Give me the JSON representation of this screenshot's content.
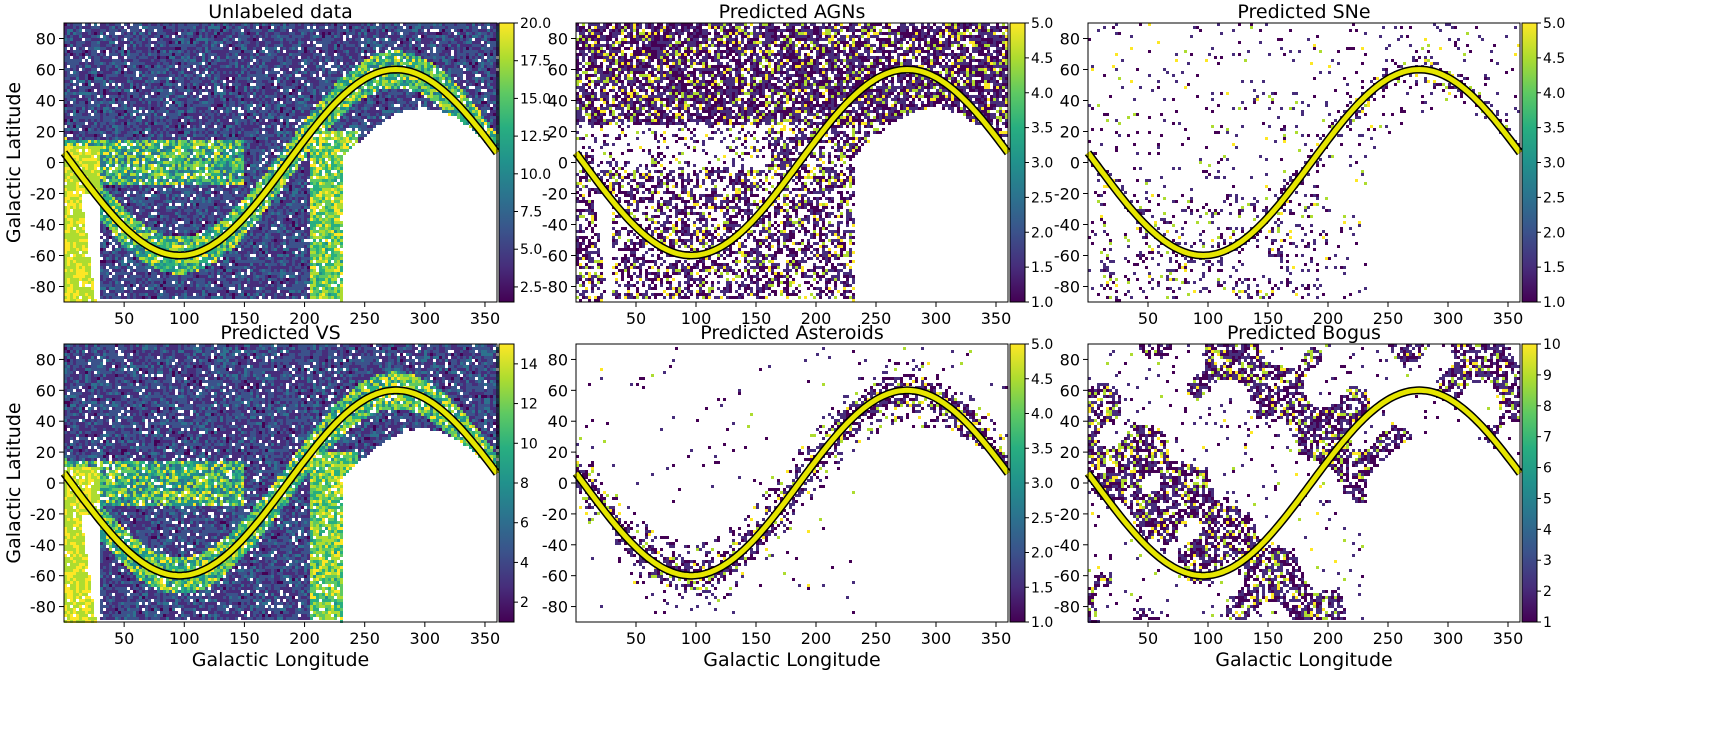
{
  "figure": {
    "shared_ylabel": "Galactic Latitude",
    "shared_xlabel": "Galactic Longitude"
  },
  "chart_data": [
    {
      "type": "heatmap",
      "title": "Unlabeled data",
      "xlabel": "",
      "ylabel": "Galactic Latitude",
      "xlim": [
        0,
        360
      ],
      "ylim": [
        -90,
        90
      ],
      "xticks": [
        50,
        100,
        150,
        200,
        250,
        300,
        350
      ],
      "yticks": [
        -80,
        -60,
        -40,
        -20,
        0,
        20,
        40,
        60,
        80
      ],
      "colorbar": {
        "min": 1.5,
        "max": 20.0,
        "ticks": [
          "2.5",
          "5.0",
          "7.5",
          "10.0",
          "12.5",
          "15.0",
          "17.5",
          "20.0"
        ],
        "cmap": "viridis"
      },
      "density": "very_high",
      "overlay": {
        "name": "ecliptic",
        "amplitude": 60,
        "peak_longitude": 276,
        "color": "#e6e600"
      }
    },
    {
      "type": "heatmap",
      "title": "Predicted AGNs",
      "xlabel": "",
      "ylabel": "",
      "xlim": [
        0,
        360
      ],
      "ylim": [
        -90,
        90
      ],
      "xticks": [
        50,
        100,
        150,
        200,
        250,
        300,
        350
      ],
      "yticks": [
        -80,
        -60,
        -40,
        -20,
        0,
        20,
        40,
        60,
        80
      ],
      "colorbar": {
        "min": 1.0,
        "max": 5.0,
        "ticks": [
          "1.0",
          "1.5",
          "2.0",
          "2.5",
          "3.0",
          "3.5",
          "4.0",
          "4.5",
          "5.0"
        ],
        "cmap": "viridis"
      },
      "density": "high",
      "overlay": {
        "name": "ecliptic",
        "amplitude": 60,
        "peak_longitude": 276,
        "color": "#e6e600"
      }
    },
    {
      "type": "heatmap",
      "title": "Predicted SNe",
      "xlabel": "",
      "ylabel": "",
      "xlim": [
        0,
        360
      ],
      "ylim": [
        -90,
        90
      ],
      "xticks": [
        50,
        100,
        150,
        200,
        250,
        300,
        350
      ],
      "yticks": [
        -80,
        -60,
        -40,
        -20,
        0,
        20,
        40,
        60,
        80
      ],
      "colorbar": {
        "min": 1.0,
        "max": 5.0,
        "ticks": [
          "1.0",
          "1.5",
          "2.0",
          "2.5",
          "3.0",
          "3.5",
          "4.0",
          "4.5",
          "5.0"
        ],
        "cmap": "viridis"
      },
      "density": "sparse",
      "overlay": {
        "name": "ecliptic",
        "amplitude": 60,
        "peak_longitude": 276,
        "color": "#e6e600"
      }
    },
    {
      "type": "heatmap",
      "title": "Predicted VS",
      "xlabel": "Galactic Longitude",
      "ylabel": "Galactic Latitude",
      "xlim": [
        0,
        360
      ],
      "ylim": [
        -90,
        90
      ],
      "xticks": [
        50,
        100,
        150,
        200,
        250,
        300,
        350
      ],
      "yticks": [
        -80,
        -60,
        -40,
        -20,
        0,
        20,
        40,
        60,
        80
      ],
      "colorbar": {
        "min": 1.0,
        "max": 15.0,
        "ticks": [
          "2",
          "4",
          "6",
          "8",
          "10",
          "12",
          "14"
        ],
        "cmap": "viridis"
      },
      "density": "very_high",
      "overlay": {
        "name": "ecliptic",
        "amplitude": 60,
        "peak_longitude": 276,
        "color": "#e6e600"
      }
    },
    {
      "type": "heatmap",
      "title": "Predicted Asteroids",
      "xlabel": "Galactic Longitude",
      "ylabel": "",
      "xlim": [
        0,
        360
      ],
      "ylim": [
        -90,
        90
      ],
      "xticks": [
        50,
        100,
        150,
        200,
        250,
        300,
        350
      ],
      "yticks": [
        -80,
        -60,
        -40,
        -20,
        0,
        20,
        40,
        60,
        80
      ],
      "colorbar": {
        "min": 1.0,
        "max": 5.0,
        "ticks": [
          "1.0",
          "1.5",
          "2.0",
          "2.5",
          "3.0",
          "3.5",
          "4.0",
          "4.5",
          "5.0"
        ],
        "cmap": "viridis"
      },
      "density": "ecliptic",
      "overlay": {
        "name": "ecliptic",
        "amplitude": 60,
        "peak_longitude": 276,
        "color": "#e6e600"
      }
    },
    {
      "type": "heatmap",
      "title": "Predicted Bogus",
      "xlabel": "Galactic Longitude",
      "ylabel": "",
      "xlim": [
        0,
        360
      ],
      "ylim": [
        -90,
        90
      ],
      "xticks": [
        50,
        100,
        150,
        200,
        250,
        300,
        350
      ],
      "yticks": [
        -80,
        -60,
        -40,
        -20,
        0,
        20,
        40,
        60,
        80
      ],
      "colorbar": {
        "min": 1.0,
        "max": 10.0,
        "ticks": [
          "1",
          "2",
          "3",
          "4",
          "5",
          "6",
          "7",
          "8",
          "9",
          "10"
        ],
        "cmap": "viridis"
      },
      "density": "patchy",
      "overlay": {
        "name": "ecliptic",
        "amplitude": 60,
        "peak_longitude": 276,
        "color": "#e6e600"
      }
    }
  ]
}
